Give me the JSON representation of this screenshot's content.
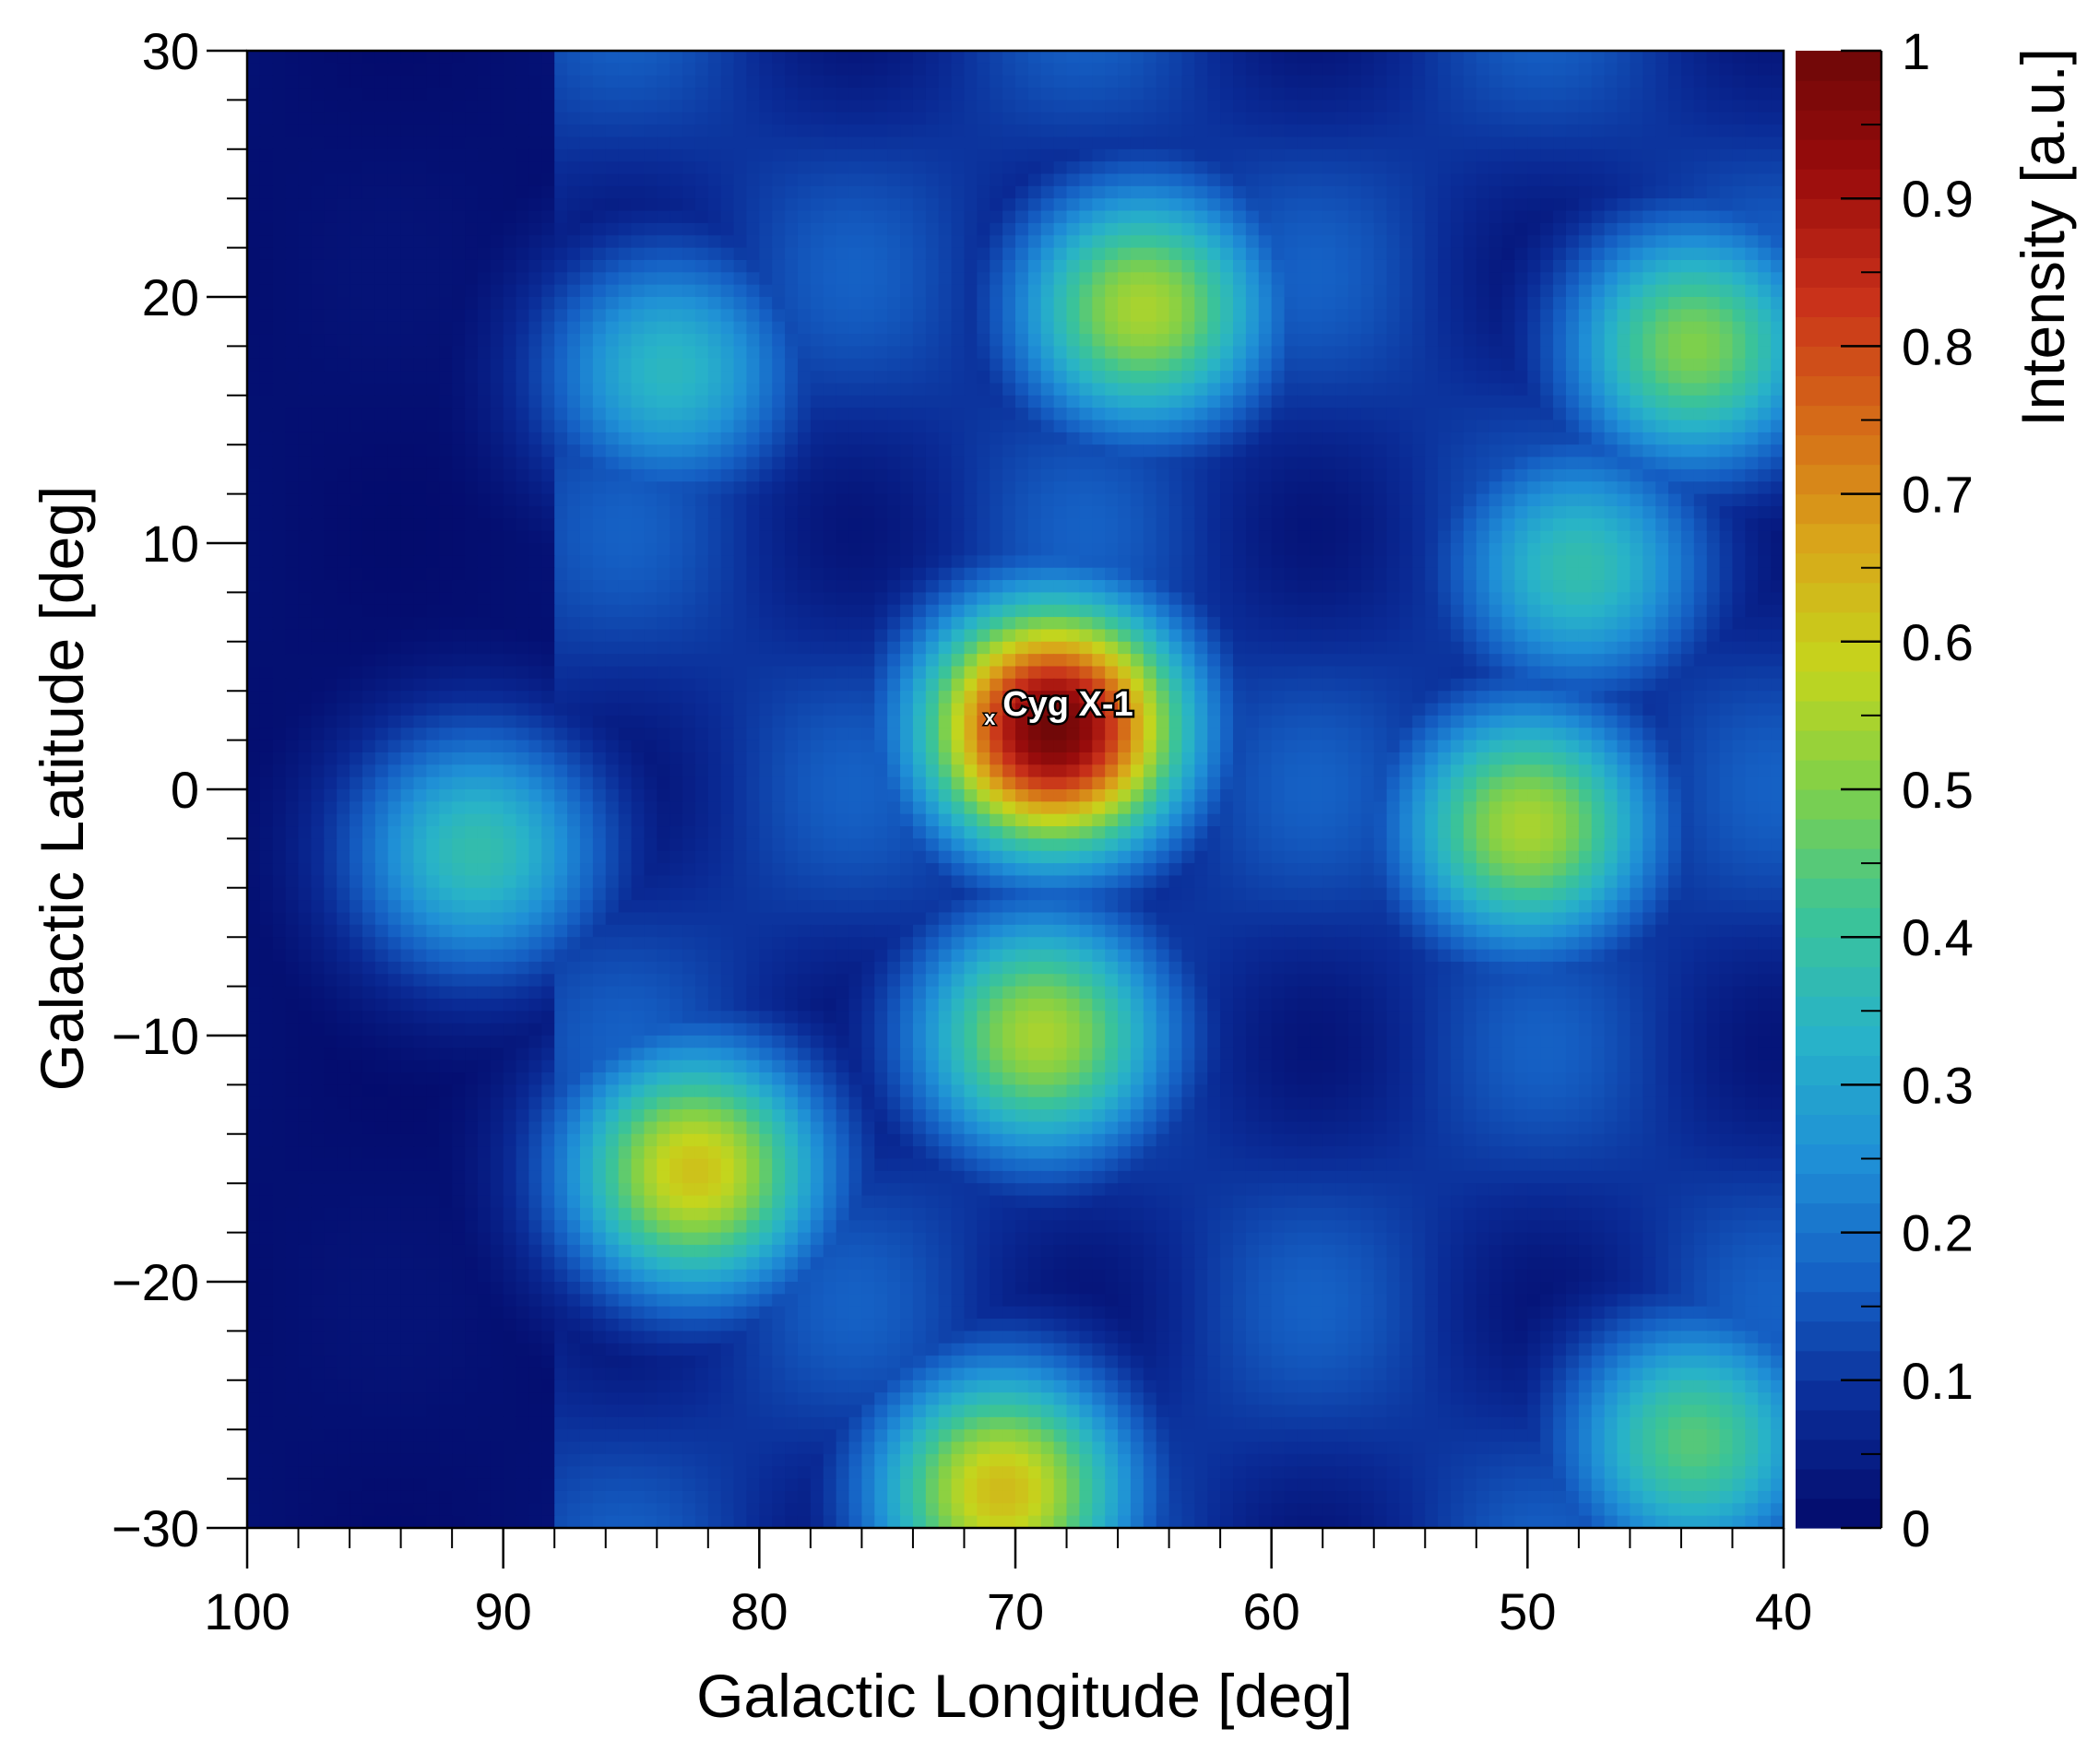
{
  "chart_data": {
    "type": "heatmap",
    "title": "",
    "xlabel": "Galactic Longitude [deg]",
    "ylabel": "Galactic Latitude [deg]",
    "colorbar_label": "Intensity [a.u.]",
    "x_range": [
      100,
      40
    ],
    "y_range": [
      -30,
      30
    ],
    "z_range": [
      0,
      1
    ],
    "x_ticks": [
      100,
      90,
      80,
      70,
      60,
      50,
      40
    ],
    "y_ticks": [
      30,
      20,
      10,
      0,
      -10,
      -20,
      -30
    ],
    "z_ticks": [
      1,
      0.9,
      0.8,
      0.7,
      0.6,
      0.5,
      0.4,
      0.3,
      0.2,
      0.1,
      0
    ],
    "x_tick_labels": [
      "100",
      "90",
      "80",
      "70",
      "60",
      "50",
      "40"
    ],
    "y_tick_labels": [
      "30",
      "20",
      "10",
      "0",
      "−10",
      "−20",
      "−30"
    ],
    "z_tick_labels": [
      "1",
      "0.9",
      "0.8",
      "0.7",
      "0.6",
      "0.5",
      "0.4",
      "0.3",
      "0.2",
      "0.1",
      "0"
    ],
    "colormap": "kBird-like (navy-blue-cyan-green-yellow-orange-red)",
    "colormap_stops": [
      "#030a6b",
      "#0a2b96",
      "#1560c4",
      "#1f8fd6",
      "#28b3c8",
      "#3cc496",
      "#7fd04a",
      "#c5d51c",
      "#d9a61a",
      "#d56a18",
      "#c8301a",
      "#9a0c0c",
      "#6e0808"
    ],
    "peaks": [
      {
        "l": 68.5,
        "b": 2.5,
        "intensity": 1.0
      },
      {
        "l": 82.5,
        "b": -15.5,
        "intensity": 0.62
      },
      {
        "l": 70.5,
        "b": -28.5,
        "intensity": 0.63
      },
      {
        "l": 69.0,
        "b": -10.0,
        "intensity": 0.55
      },
      {
        "l": 50.0,
        "b": -1.5,
        "intensity": 0.55
      },
      {
        "l": 65.0,
        "b": 19.5,
        "intensity": 0.55
      },
      {
        "l": 43.5,
        "b": 18.0,
        "intensity": 0.5
      },
      {
        "l": 83.5,
        "b": 17.0,
        "intensity": 0.35
      },
      {
        "l": 91.0,
        "b": -2.5,
        "intensity": 0.38
      },
      {
        "l": 43.5,
        "b": -26.5,
        "intensity": 0.45
      },
      {
        "l": 48.0,
        "b": 9.0,
        "intensity": 0.38
      }
    ],
    "annotations": [
      {
        "text": "Cyg X-1",
        "marker": "x",
        "l": 71.0,
        "b": 3.0
      }
    ]
  }
}
